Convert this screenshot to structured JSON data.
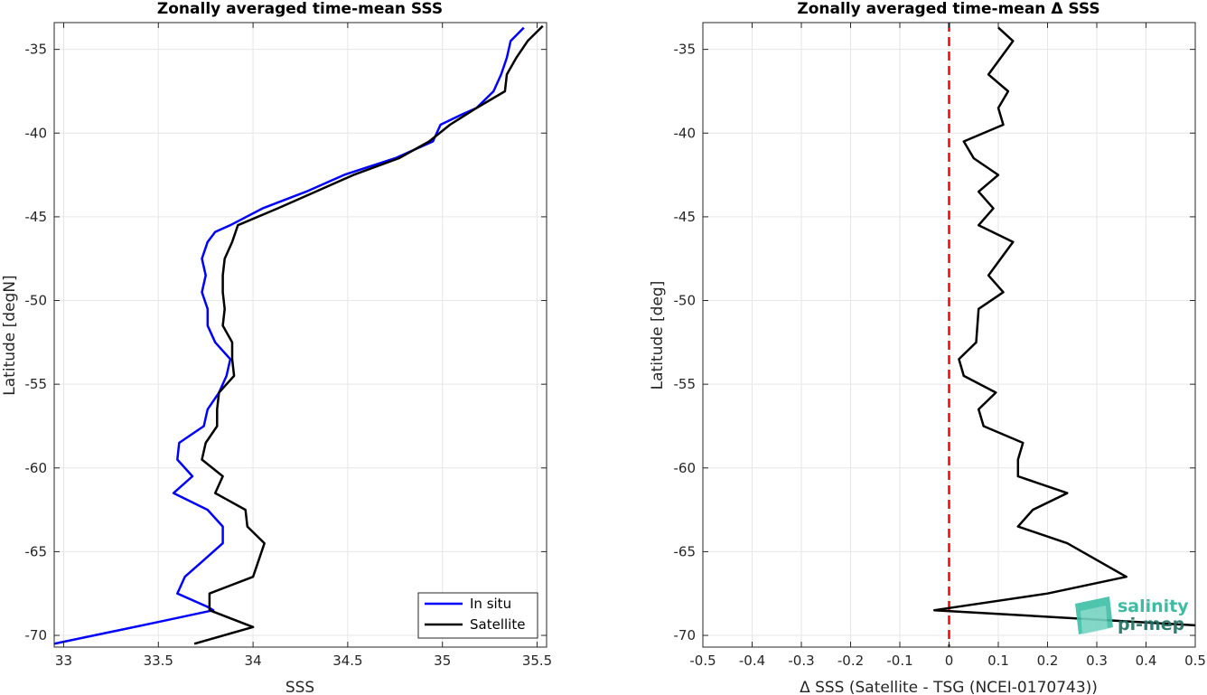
{
  "chart_data": [
    {
      "type": "line",
      "title": "Zonally averaged time-mean SSS",
      "xlabel": "SSS",
      "ylabel": "Latitude [degN]",
      "xlim": [
        32.95,
        35.55
      ],
      "ylim": [
        -70.7,
        -33.4
      ],
      "xticks": [
        33,
        33.5,
        34,
        34.5,
        35,
        35.5
      ],
      "xtick_labels": [
        "33",
        "33.5",
        "34",
        "34.5",
        "35",
        "35.5"
      ],
      "yticks": [
        -70,
        -65,
        -60,
        -55,
        -50,
        -45,
        -40,
        -35
      ],
      "ytick_labels": [
        "-70",
        "-65",
        "-60",
        "-55",
        "-50",
        "-45",
        "-40",
        "-35"
      ],
      "grid": true,
      "legend_position": "bottom-right",
      "series": [
        {
          "name": "In situ",
          "color": "#0000ff",
          "points": [
            [
              35.43,
              -33.7
            ],
            [
              35.36,
              -34.5
            ],
            [
              35.34,
              -35.5
            ],
            [
              35.31,
              -36.5
            ],
            [
              35.27,
              -37.5
            ],
            [
              35.18,
              -38.5
            ],
            [
              35.1,
              -38.9
            ],
            [
              34.99,
              -39.5
            ],
            [
              34.95,
              -40.5
            ],
            [
              34.75,
              -41.5
            ],
            [
              34.48,
              -42.5
            ],
            [
              34.28,
              -43.5
            ],
            [
              34.05,
              -44.5
            ],
            [
              33.88,
              -45.5
            ],
            [
              33.8,
              -45.9
            ],
            [
              33.76,
              -46.5
            ],
            [
              33.73,
              -47.5
            ],
            [
              33.75,
              -48.5
            ],
            [
              33.73,
              -49.5
            ],
            [
              33.76,
              -50.5
            ],
            [
              33.76,
              -51.5
            ],
            [
              33.8,
              -52.5
            ],
            [
              33.88,
              -53.5
            ],
            [
              33.86,
              -54.5
            ],
            [
              33.82,
              -55.5
            ],
            [
              33.76,
              -56.5
            ],
            [
              33.74,
              -57.5
            ],
            [
              33.61,
              -58.5
            ],
            [
              33.6,
              -59.5
            ],
            [
              33.68,
              -60.5
            ],
            [
              33.58,
              -61.5
            ],
            [
              33.76,
              -62.5
            ],
            [
              33.84,
              -63.5
            ],
            [
              33.84,
              -64.5
            ],
            [
              33.72,
              -65.7
            ],
            [
              33.64,
              -66.5
            ],
            [
              33.6,
              -67.5
            ],
            [
              33.76,
              -68.3
            ],
            [
              33.79,
              -68.5
            ],
            [
              33.5,
              -69.2
            ],
            [
              32.95,
              -70.5
            ]
          ]
        },
        {
          "name": "Satellite",
          "color": "#000000",
          "points": [
            [
              35.53,
              -33.6
            ],
            [
              35.45,
              -34.5
            ],
            [
              35.39,
              -35.5
            ],
            [
              35.34,
              -36.5
            ],
            [
              35.33,
              -37.5
            ],
            [
              35.18,
              -38.5
            ],
            [
              35.04,
              -39.5
            ],
            [
              34.93,
              -40.5
            ],
            [
              34.77,
              -41.5
            ],
            [
              34.53,
              -42.5
            ],
            [
              34.33,
              -43.5
            ],
            [
              34.13,
              -44.5
            ],
            [
              33.92,
              -45.5
            ],
            [
              33.89,
              -46.5
            ],
            [
              33.85,
              -47.5
            ],
            [
              33.84,
              -48.5
            ],
            [
              33.84,
              -49.5
            ],
            [
              33.85,
              -50.5
            ],
            [
              33.84,
              -51.5
            ],
            [
              33.89,
              -52.5
            ],
            [
              33.89,
              -53.5
            ],
            [
              33.9,
              -54.5
            ],
            [
              33.82,
              -55.5
            ],
            [
              33.81,
              -56.5
            ],
            [
              33.81,
              -57.5
            ],
            [
              33.75,
              -58.5
            ],
            [
              33.73,
              -59.5
            ],
            [
              33.84,
              -60.5
            ],
            [
              33.8,
              -61.5
            ],
            [
              33.96,
              -62.5
            ],
            [
              33.97,
              -63.5
            ],
            [
              34.06,
              -64.5
            ],
            [
              34.03,
              -65.5
            ],
            [
              34.0,
              -66.5
            ],
            [
              33.77,
              -67.5
            ],
            [
              33.77,
              -68.5
            ],
            [
              34.0,
              -69.5
            ],
            [
              33.69,
              -70.5
            ]
          ]
        }
      ]
    },
    {
      "type": "line",
      "title": "Zonally averaged time-mean Δ SSS",
      "xlabel": "Δ SSS (Satellite - TSG (NCEI-0170743))",
      "ylabel": "Latitude [deg]",
      "xlim": [
        -0.5,
        0.5
      ],
      "ylim": [
        -70.7,
        -33.4
      ],
      "xticks": [
        -0.5,
        -0.4,
        -0.3,
        -0.2,
        -0.1,
        0,
        0.1,
        0.2,
        0.3,
        0.4,
        0.5
      ],
      "xtick_labels": [
        "-0.5",
        "-0.4",
        "-0.3",
        "-0.2",
        "-0.1",
        "0",
        "0.1",
        "0.2",
        "0.3",
        "0.4",
        "0.5"
      ],
      "yticks": [
        -70,
        -65,
        -60,
        -55,
        -50,
        -45,
        -40,
        -35
      ],
      "ytick_labels": [
        "-70",
        "-65",
        "-60",
        "-55",
        "-50",
        "-45",
        "-40",
        "-35"
      ],
      "grid": true,
      "reference_line": {
        "x": 0,
        "color": "#ff0000",
        "style": "dashed"
      },
      "series": [
        {
          "color": "#000000",
          "points": [
            [
              0.1,
              -33.7
            ],
            [
              0.13,
              -34.5
            ],
            [
              0.08,
              -36.5
            ],
            [
              0.12,
              -37.5
            ],
            [
              0.1,
              -38.5
            ],
            [
              0.11,
              -39.5
            ],
            [
              0.03,
              -40.5
            ],
            [
              0.05,
              -41.5
            ],
            [
              0.1,
              -42.5
            ],
            [
              0.06,
              -43.5
            ],
            [
              0.09,
              -44.5
            ],
            [
              0.06,
              -45.5
            ],
            [
              0.13,
              -46.5
            ],
            [
              0.08,
              -48.5
            ],
            [
              0.11,
              -49.5
            ],
            [
              0.06,
              -50.5
            ],
            [
              0.055,
              -52.5
            ],
            [
              0.02,
              -53.5
            ],
            [
              0.03,
              -54.5
            ],
            [
              0.095,
              -55.5
            ],
            [
              0.06,
              -56.5
            ],
            [
              0.07,
              -57.5
            ],
            [
              0.15,
              -58.5
            ],
            [
              0.14,
              -59.5
            ],
            [
              0.14,
              -60.5
            ],
            [
              0.24,
              -61.5
            ],
            [
              0.17,
              -62.5
            ],
            [
              0.14,
              -63.5
            ],
            [
              0.24,
              -64.5
            ],
            [
              0.36,
              -66.5
            ],
            [
              0.2,
              -67.5
            ],
            [
              -0.03,
              -68.5
            ],
            [
              0.5,
              -69.4
            ]
          ]
        }
      ]
    }
  ],
  "watermark": {
    "line1": "salinity",
    "line2": "pi-mep"
  }
}
